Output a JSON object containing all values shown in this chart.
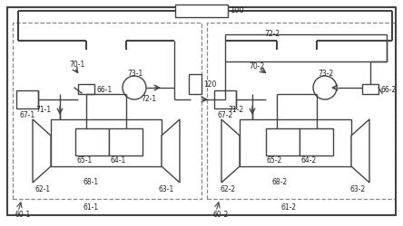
{
  "line_color": "#444444",
  "lw": 1.0,
  "lw2": 1.5,
  "fig_width": 4.44,
  "fig_height": 2.5
}
